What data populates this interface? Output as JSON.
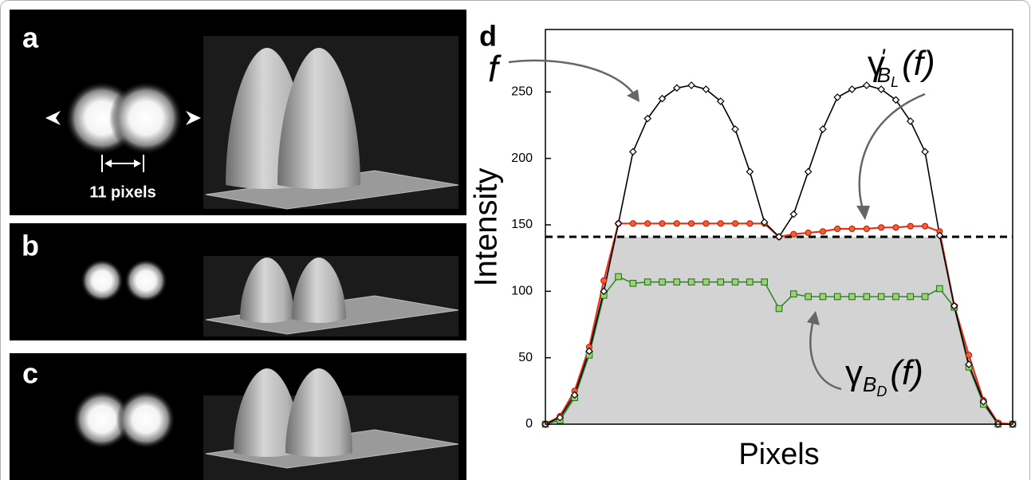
{
  "panels": {
    "a": {
      "label": "a",
      "annotation": "11 pixels"
    },
    "b": {
      "label": "b"
    },
    "c": {
      "label": "c"
    }
  },
  "chart_data": {
    "type": "line",
    "panel_label": "d",
    "xlabel": "Pixels",
    "ylabel": "Intensity",
    "categories": [
      null,
      null,
      null,
      null,
      null,
      null,
      null,
      null,
      null,
      null,
      null,
      null,
      null,
      null,
      null,
      null,
      null,
      null,
      null,
      null,
      null,
      null,
      null,
      null,
      null,
      null,
      null,
      null,
      null,
      null,
      null,
      null,
      null
    ],
    "ylim": [
      0,
      297
    ],
    "yticks": [
      0,
      50,
      100,
      150,
      200,
      250
    ],
    "threshold": 141,
    "series": [
      {
        "color": "#000000",
        "marker": "diamond",
        "values": [
          0,
          5,
          22,
          55,
          100,
          151,
          205,
          230,
          245,
          253,
          255,
          252,
          243,
          222,
          190,
          152,
          141,
          158,
          190,
          222,
          246,
          252,
          255,
          252,
          244,
          228,
          205,
          142,
          89,
          45,
          17,
          0,
          0
        ]
      },
      {
        "color": "#e8301c",
        "marker": "circle",
        "values": [
          0,
          6,
          25,
          58,
          108,
          151,
          151,
          151,
          151,
          151,
          151,
          151,
          151,
          151,
          151,
          151,
          141,
          143,
          144,
          145,
          147,
          147,
          147,
          148,
          148,
          149,
          149,
          145,
          89,
          52,
          18,
          1,
          0
        ]
      },
      {
        "color": "#2f8a2f",
        "marker": "square",
        "values": [
          0,
          3,
          20,
          52,
          97,
          111,
          106,
          107,
          107,
          107,
          107,
          107,
          107,
          107,
          107,
          107,
          87,
          98,
          96,
          96,
          96,
          96,
          96,
          96,
          96,
          96,
          96,
          102,
          88,
          43,
          15,
          0,
          0
        ]
      }
    ],
    "annotations": [
      {
        "parts": [
          "f"
        ]
      },
      {
        "parts": [
          "γ",
          "'",
          "B",
          "L",
          "(f)"
        ]
      },
      {
        "parts": [
          "γ",
          "B",
          "D",
          "(f)"
        ]
      }
    ]
  }
}
